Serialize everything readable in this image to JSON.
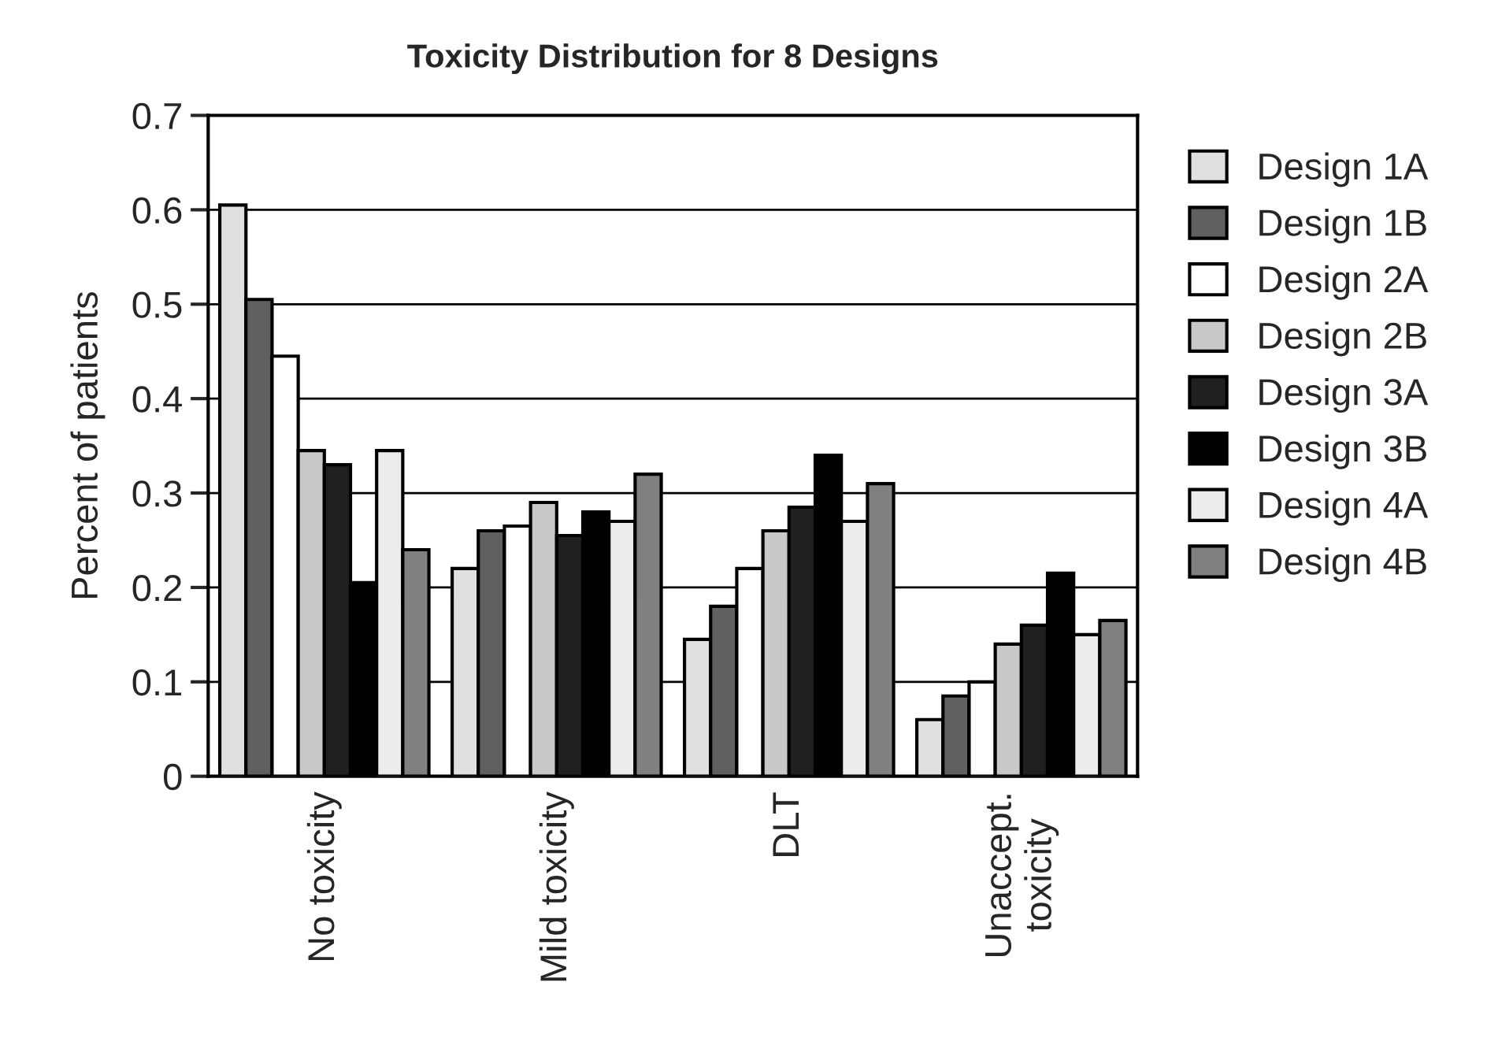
{
  "chart_data": {
    "type": "bar",
    "title": "Toxicity Distribution for 8 Designs",
    "ylabel": "Percent of patients",
    "categories": [
      "No toxicity",
      "Mild toxicity",
      "DLT",
      "Unaccept.\ntoxicity"
    ],
    "series": [
      {
        "name": "Design 1A",
        "color": "#e0e0e0",
        "values": [
          0.605,
          0.22,
          0.145,
          0.06
        ]
      },
      {
        "name": "Design 1B",
        "color": "#606060",
        "values": [
          0.505,
          0.26,
          0.18,
          0.085
        ]
      },
      {
        "name": "Design 2A",
        "color": "#ffffff",
        "values": [
          0.445,
          0.265,
          0.22,
          0.1
        ]
      },
      {
        "name": "Design 2B",
        "color": "#c8c8c8",
        "values": [
          0.345,
          0.29,
          0.26,
          0.14
        ]
      },
      {
        "name": "Design 3A",
        "color": "#202020",
        "values": [
          0.33,
          0.255,
          0.285,
          0.16
        ]
      },
      {
        "name": "Design 3B",
        "color": "#000000",
        "values": [
          0.205,
          0.28,
          0.34,
          0.215
        ]
      },
      {
        "name": "Design 4A",
        "color": "#ececec",
        "values": [
          0.345,
          0.27,
          0.27,
          0.15
        ]
      },
      {
        "name": "Design 4B",
        "color": "#808080",
        "values": [
          0.24,
          0.32,
          0.31,
          0.165
        ]
      }
    ],
    "ylim": [
      0,
      0.7
    ],
    "yticks": [
      0,
      0.1,
      0.2,
      0.3,
      0.4,
      0.5,
      0.6,
      0.7
    ],
    "grid": "y",
    "legend": "right"
  }
}
